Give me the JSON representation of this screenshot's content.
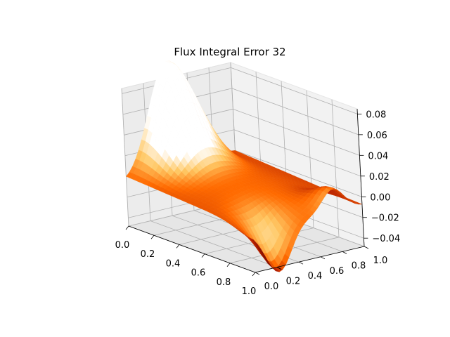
{
  "chart_data": {
    "type": "surface3d",
    "title": "Flux Integral Error 32",
    "xlabel": "",
    "ylabel": "",
    "zlabel": "",
    "x_ticks": [
      "0.0",
      "0.2",
      "0.4",
      "0.6",
      "0.8",
      "1.0"
    ],
    "y_ticks": [
      "0.0",
      "0.2",
      "0.4",
      "0.6",
      "0.8",
      "1.0"
    ],
    "z_ticks": [
      "−0.04",
      "−0.02",
      "0.00",
      "0.02",
      "0.04",
      "0.06",
      "0.08"
    ],
    "xlim": [
      0,
      1
    ],
    "ylim": [
      0,
      1
    ],
    "zlim": [
      -0.048,
      0.085
    ],
    "grid": true,
    "colormap": "gist_heat",
    "colormap_stops": [
      "#000000",
      "#5a0000",
      "#b41e00",
      "#ff6a00",
      "#ffc864",
      "#ffffff"
    ],
    "resolution": 32,
    "surface_function": {
      "description": "approximate error surface sampled on a 32x32 grid",
      "peak": {
        "x": 0.0,
        "y": 0.38,
        "z": 0.085
      },
      "trough": {
        "x": 1.0,
        "y": 0.25,
        "z": -0.045
      },
      "secondary_peak": {
        "x": 1.0,
        "y": 0.75,
        "z": 0.02
      }
    }
  }
}
